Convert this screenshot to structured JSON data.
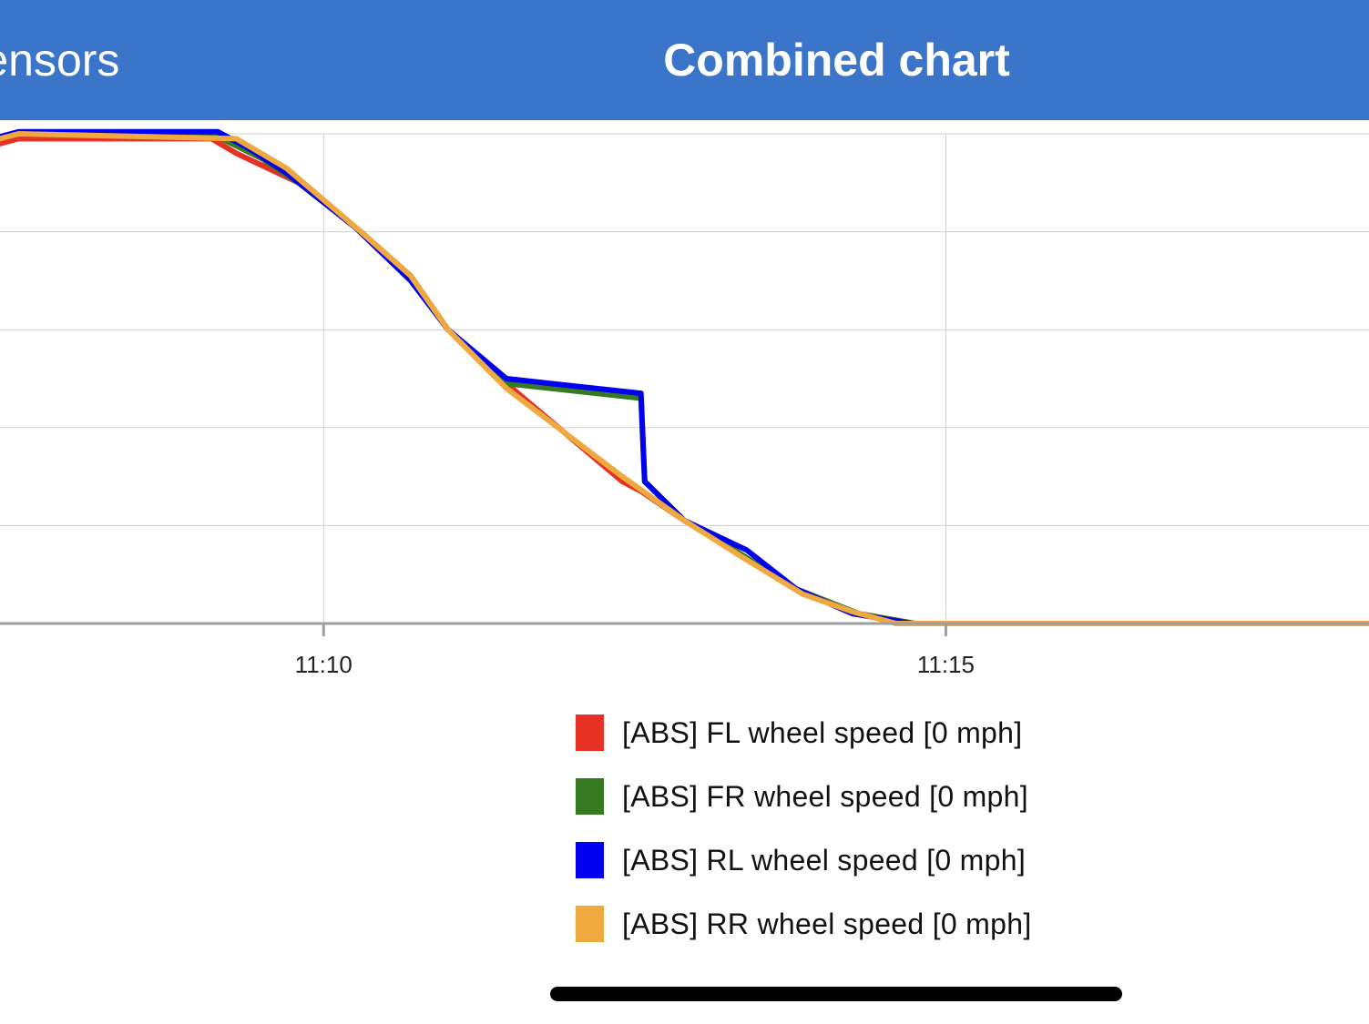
{
  "nav": {
    "back_title": "Sensors",
    "title": "Combined chart"
  },
  "chart_data": {
    "type": "line",
    "title": "",
    "xlabel": "",
    "ylabel": "",
    "x_ticks": [
      "11:10",
      "11:15"
    ],
    "x_tick_minutes": [
      10,
      15
    ],
    "xlim_minutes": [
      7.4,
      18.4
    ],
    "ylim": [
      0,
      5
    ],
    "grid": true,
    "legend_position": "bottom",
    "series": [
      {
        "name": "[ABS] FL wheel speed [0 mph]",
        "color": "#e53225",
        "x": [
          7.4,
          7.55,
          9.1,
          9.3,
          9.8,
          10.3,
          10.65,
          11.0,
          11.47,
          12.4,
          12.55,
          12.9,
          13.3,
          13.8,
          14.3,
          14.75,
          18.4
        ],
        "y": [
          4.9,
          4.95,
          4.95,
          4.8,
          4.5,
          4.0,
          3.6,
          3.0,
          2.45,
          1.45,
          1.35,
          1.05,
          0.75,
          0.35,
          0.1,
          0.0,
          0.0
        ]
      },
      {
        "name": "[ABS] FR wheel speed [0 mph]",
        "color": "#367a22",
        "x": [
          7.4,
          7.55,
          9.15,
          9.5,
          9.8,
          10.3,
          10.7,
          11.0,
          11.47,
          12.55,
          12.58,
          12.9,
          13.3,
          13.8,
          14.3,
          14.75,
          18.4
        ],
        "y": [
          4.95,
          5.0,
          4.97,
          4.75,
          4.5,
          4.0,
          3.55,
          3.0,
          2.45,
          2.3,
          1.45,
          1.05,
          0.75,
          0.35,
          0.1,
          0.0,
          0.0
        ]
      },
      {
        "name": "[ABS] RL wheel speed [0 mph]",
        "color": "#0000ee",
        "x": [
          7.4,
          7.55,
          9.15,
          9.4,
          9.7,
          10.25,
          10.7,
          11.0,
          11.47,
          12.55,
          12.58,
          12.9,
          13.4,
          13.8,
          14.25,
          14.72,
          18.4
        ],
        "y": [
          4.97,
          5.02,
          5.02,
          4.85,
          4.6,
          4.05,
          3.5,
          3.0,
          2.5,
          2.35,
          1.45,
          1.05,
          0.75,
          0.35,
          0.1,
          0.0,
          0.0
        ]
      },
      {
        "name": "[ABS] RR wheel speed [0 mph]",
        "color": "#efa93f",
        "x": [
          7.4,
          7.55,
          9.3,
          9.7,
          10.3,
          10.7,
          11.0,
          11.47,
          12.4,
          12.9,
          13.4,
          13.85,
          14.25,
          14.6,
          18.4
        ],
        "y": [
          4.95,
          5.0,
          4.95,
          4.65,
          4.0,
          3.55,
          3.0,
          2.4,
          1.5,
          1.05,
          0.65,
          0.3,
          0.12,
          0.0,
          0.0
        ]
      }
    ]
  },
  "home_indicator": {
    "color": "#000000"
  }
}
